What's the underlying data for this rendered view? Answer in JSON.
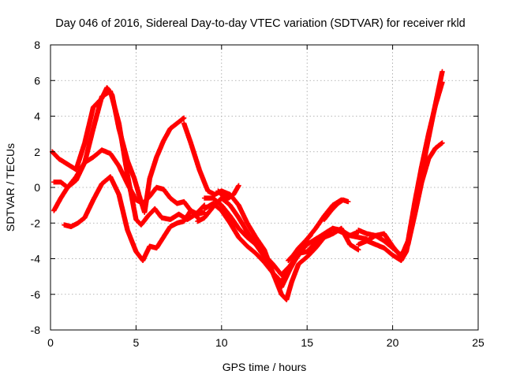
{
  "chart_data": {
    "type": "scatter",
    "title": "Day 046 of 2016, Sidereal Day-to-day VTEC variation (SDTVAR) for receiver rkld",
    "xlabel": "GPS time / hours",
    "ylabel": "SDTVAR / TECUs",
    "xlim": [
      0,
      25
    ],
    "ylim": [
      -8,
      8
    ],
    "xticks": [
      0,
      5,
      10,
      15,
      20,
      25
    ],
    "yticks": [
      -8,
      -6,
      -4,
      -2,
      0,
      2,
      4,
      6,
      8
    ],
    "grid": true,
    "legend": "none",
    "marker": "plus",
    "color": "#ff0000",
    "series": [
      {
        "x": [
          0.1,
          0.5,
          1.0,
          1.5,
          2.0,
          2.5,
          3.0,
          3.3,
          3.6,
          4.0,
          4.5,
          4.9,
          5.2,
          5.5,
          5.8,
          6.2,
          6.6,
          7.0,
          7.4,
          7.8
        ],
        "y": [
          2.0,
          1.6,
          1.3,
          1.0,
          2.5,
          4.5,
          5.0,
          5.6,
          5.2,
          3.3,
          1.5,
          0.5,
          -0.5,
          -1.4,
          0.5,
          1.7,
          2.6,
          3.3,
          3.6,
          3.9
        ]
      },
      {
        "x": [
          7.8,
          8.2,
          8.7,
          9.2,
          9.6,
          10.0,
          10.5,
          11.0,
          11.5,
          12.0,
          12.5,
          13.0,
          13.5,
          14.0,
          14.5,
          15.0,
          15.5,
          16.0,
          16.5,
          17.0
        ],
        "y": [
          3.6,
          2.5,
          1.0,
          -0.2,
          -0.4,
          -0.2,
          -0.4,
          -1.0,
          -2.0,
          -2.8,
          -3.5,
          -4.8,
          -5.3,
          -4.5,
          -3.8,
          -2.9,
          -2.3,
          -1.6,
          -1.0,
          -0.7
        ]
      },
      {
        "x": [
          0.2,
          0.6,
          1.0,
          1.5,
          2.0,
          2.5,
          3.0,
          3.5,
          4.0,
          4.5,
          5.0,
          5.3,
          5.7,
          6.1,
          6.5,
          7.0,
          7.5,
          8.0,
          8.5,
          9.0
        ],
        "y": [
          0.3,
          0.3,
          0.0,
          0.4,
          1.4,
          3.3,
          5.1,
          5.4,
          3.6,
          0.7,
          -1.8,
          -2.1,
          -1.6,
          -1.2,
          -1.7,
          -1.8,
          -1.5,
          -1.8,
          -1.5,
          -1.0
        ]
      },
      {
        "x": [
          9.0,
          9.5,
          10.0,
          10.5,
          11.0,
          11.5,
          12.0,
          12.5,
          13.0,
          13.5,
          14.0,
          14.5,
          15.0,
          15.5,
          16.0,
          16.5,
          17.0,
          17.5,
          18.0,
          18.5
        ],
        "y": [
          -0.6,
          -0.6,
          -1.0,
          -1.6,
          -2.3,
          -2.8,
          -3.2,
          -3.9,
          -4.8,
          -5.6,
          -4.6,
          -3.7,
          -3.6,
          -3.1,
          -2.6,
          -2.3,
          -2.4,
          -2.7,
          -2.8,
          -2.9
        ]
      },
      {
        "x": [
          18.5,
          19.0,
          19.5,
          20.0,
          20.5,
          20.8,
          21.2,
          21.6,
          22.0,
          22.4,
          22.9
        ],
        "y": [
          -3.0,
          -3.2,
          -3.4,
          -3.8,
          -4.1,
          -3.6,
          -1.8,
          0.3,
          2.3,
          4.2,
          6.5
        ]
      },
      {
        "x": [
          0.2,
          0.6,
          1.0,
          1.5,
          2.0,
          2.5,
          3.0,
          3.5,
          4.0,
          4.5,
          5.0,
          5.4,
          5.8,
          6.2,
          6.6,
          7.0,
          7.4,
          7.8,
          8.2,
          8.6
        ],
        "y": [
          -1.3,
          -0.6,
          0.0,
          0.6,
          1.4,
          1.7,
          2.1,
          1.9,
          1.2,
          0.2,
          -0.7,
          -0.9,
          -0.5,
          0.0,
          -0.1,
          -0.6,
          -0.9,
          -0.8,
          -1.3,
          -1.7
        ]
      },
      {
        "x": [
          8.6,
          9.0,
          9.5,
          10.0,
          10.5,
          11.0,
          11.5,
          12.0,
          12.5,
          13.0,
          13.5,
          14.0,
          14.5,
          15.0,
          15.5,
          16.0,
          16.5,
          17.0,
          17.5,
          18.0
        ],
        "y": [
          -1.9,
          -1.7,
          -1.1,
          -0.6,
          -1.0,
          -1.7,
          -2.5,
          -3.2,
          -3.8,
          -4.3,
          -4.9,
          -4.4,
          -3.7,
          -3.2,
          -2.9,
          -2.6,
          -2.3,
          -2.5,
          -2.7,
          -2.5
        ]
      },
      {
        "x": [
          18.0,
          18.5,
          19.0,
          19.5,
          20.0,
          20.5,
          20.9,
          21.3,
          21.7,
          22.1,
          22.5,
          22.9
        ],
        "y": [
          -2.4,
          -2.6,
          -2.7,
          -3.0,
          -3.4,
          -3.8,
          -3.2,
          -1.5,
          0.3,
          1.6,
          2.2,
          2.5
        ]
      },
      {
        "x": [
          0.8,
          1.2,
          1.6,
          2.0,
          2.5,
          3.0,
          3.5,
          4.0,
          4.5,
          5.0,
          5.4,
          5.8,
          6.2,
          6.6,
          7.0,
          7.4,
          7.8,
          8.2,
          8.6,
          9.0
        ],
        "y": [
          -2.1,
          -2.2,
          -2.0,
          -1.7,
          -0.7,
          0.2,
          0.6,
          -0.4,
          -2.4,
          -3.6,
          -4.1,
          -3.3,
          -3.4,
          -2.8,
          -2.2,
          -2.0,
          -1.9,
          -1.3,
          -1.5,
          -1.4
        ]
      },
      {
        "x": [
          9.0,
          9.5,
          10.0,
          10.5,
          11.0,
          11.5,
          12.0,
          12.5,
          13.0,
          13.5,
          13.8,
          14.1,
          14.5,
          15.0,
          15.5,
          16.0,
          16.5,
          17.0,
          17.5,
          18.0
        ],
        "y": [
          -1.2,
          -0.9,
          -1.3,
          -2.0,
          -2.8,
          -3.3,
          -3.7,
          -4.2,
          -4.8,
          -6.0,
          -6.3,
          -5.3,
          -4.3,
          -3.9,
          -3.4,
          -2.8,
          -2.6,
          -2.3,
          -3.2,
          -3.5
        ]
      },
      {
        "x": [
          18.0,
          18.5,
          19.0,
          19.5,
          20.0,
          20.5,
          20.9,
          21.3,
          21.7,
          22.1,
          22.5,
          22.9
        ],
        "y": [
          -3.2,
          -3.0,
          -2.7,
          -2.6,
          -3.3,
          -3.9,
          -3.0,
          -0.8,
          1.2,
          3.0,
          4.6,
          5.9
        ]
      },
      {
        "x": [
          9.8,
          10.1,
          10.4,
          10.7,
          11.0,
          16.0,
          16.4,
          16.8,
          17.1,
          17.4,
          13.9,
          14.2,
          14.5,
          14.8,
          15.2
        ],
        "y": [
          -0.2,
          -0.5,
          -0.6,
          -0.4,
          0.1,
          -1.8,
          -1.3,
          -0.9,
          -0.7,
          -0.8,
          -4.1,
          -3.8,
          -3.4,
          -3.1,
          -2.7
        ]
      }
    ]
  }
}
